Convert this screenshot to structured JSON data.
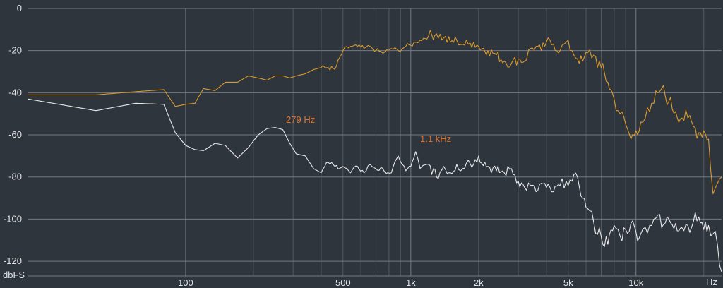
{
  "chart_data": {
    "type": "line",
    "title": "",
    "xlabel": "Hz",
    "ylabel": "dbFS",
    "x_scale": "log",
    "xlim": [
      20,
      24000
    ],
    "ylim": [
      -127,
      0
    ],
    "grid": true,
    "x_tick_labels": [
      {
        "value": 100,
        "label": "100"
      },
      {
        "value": 500,
        "label": "500"
      },
      {
        "value": 1000,
        "label": "1k"
      },
      {
        "value": 2000,
        "label": "2k"
      },
      {
        "value": 5000,
        "label": "5k"
      },
      {
        "value": 10000,
        "label": "10k"
      }
    ],
    "y_ticks": [
      0,
      -20,
      -40,
      -60,
      -80,
      -100,
      -120
    ],
    "series": [
      {
        "color": "#d99a2b",
        "x": [
          20,
          40,
          60,
          80,
          90,
          100,
          110,
          120,
          135,
          150,
          170,
          190,
          210,
          230,
          250,
          270,
          290,
          310,
          340,
          370,
          400,
          430,
          460,
          500,
          540,
          580,
          620,
          660,
          700,
          760,
          820,
          880,
          950,
          1000,
          1050,
          1100,
          1200,
          1300,
          1400,
          1500,
          1600,
          1700,
          1800,
          1900,
          2000,
          2200,
          2400,
          2600,
          2800,
          3000,
          3200,
          3400,
          3600,
          3800,
          4000,
          4300,
          4600,
          4900,
          5200,
          5500,
          5800,
          6100,
          6500,
          7000,
          7500,
          8000,
          8500,
          9000,
          9500,
          10000,
          10500,
          11000,
          11500,
          12000,
          12500,
          13000,
          14000,
          15000,
          16000,
          17000,
          18000,
          19000,
          20000,
          21000,
          22000,
          23000,
          24000
        ],
        "y": [
          -41,
          -41,
          -39.5,
          -38.5,
          -46.5,
          -45.5,
          -45,
          -38,
          -39,
          -35,
          -35,
          -32,
          -33,
          -34,
          -32,
          -32,
          -33,
          -32,
          -31,
          -29,
          -28,
          -28,
          -29,
          -20,
          -18,
          -18,
          -19,
          -18,
          -20,
          -21,
          -19,
          -20,
          -18,
          -17.5,
          -16,
          -15,
          -13,
          -12,
          -14,
          -16,
          -15,
          -17,
          -17,
          -16,
          -18,
          -20,
          -22,
          -25,
          -26,
          -24,
          -25,
          -19,
          -18,
          -20,
          -16,
          -17,
          -20,
          -16,
          -20,
          -24,
          -25,
          -21,
          -22,
          -28,
          -35,
          -43,
          -50,
          -55,
          -62,
          -58,
          -54,
          -52,
          -49,
          -45,
          -40,
          -38,
          -44,
          -49,
          -52,
          -52,
          -56,
          -59,
          -58,
          -62,
          -88,
          -83,
          -80
        ]
      },
      {
        "color": "#e8e8e8",
        "x": [
          20,
          40,
          60,
          80,
          90,
          100,
          110,
          120,
          135,
          150,
          170,
          190,
          210,
          230,
          250,
          270,
          290,
          310,
          340,
          370,
          400,
          430,
          460,
          500,
          540,
          580,
          620,
          660,
          700,
          760,
          820,
          880,
          950,
          1000,
          1050,
          1100,
          1200,
          1300,
          1400,
          1500,
          1600,
          1700,
          1800,
          1900,
          2000,
          2200,
          2400,
          2600,
          2800,
          3000,
          3200,
          3400,
          3600,
          3800,
          4000,
          4300,
          4600,
          4900,
          5200,
          5500,
          5800,
          6100,
          6500,
          7000,
          7500,
          8000,
          8500,
          9000,
          9500,
          10000,
          10500,
          11000,
          11500,
          12000,
          12500,
          13000,
          14000,
          15000,
          16000,
          17000,
          18000,
          19000,
          20000,
          21000,
          22000,
          23000,
          24000
        ],
        "y": [
          -43,
          -48.5,
          -45,
          -45.5,
          -59,
          -65,
          -67,
          -67.5,
          -64,
          -65,
          -71,
          -66,
          -60,
          -57,
          -56.5,
          -57.5,
          -64,
          -69,
          -70,
          -76,
          -78,
          -73,
          -75,
          -75,
          -78,
          -75,
          -78,
          -74,
          -76,
          -77,
          -78,
          -70,
          -77,
          -75,
          -68,
          -76,
          -74,
          -80,
          -75,
          -78,
          -74,
          -76,
          -72,
          -74,
          -70,
          -75,
          -77,
          -78,
          -76,
          -82,
          -85,
          -84,
          -87,
          -83,
          -85,
          -87,
          -84,
          -82,
          -82,
          -80,
          -90,
          -95,
          -102,
          -108,
          -112,
          -103,
          -108,
          -105,
          -102,
          -106,
          -107,
          -104,
          -103,
          -100,
          -98,
          -104,
          -100,
          -102,
          -104,
          -103,
          -101,
          -99,
          -105,
          -103,
          -107,
          -112,
          -125
        ]
      }
    ],
    "annotations": [
      {
        "text": "279 Hz",
        "x": 279,
        "y": -57,
        "color": "#e0722a"
      },
      {
        "text": "1.1  kHz",
        "x": 1100,
        "y": -66,
        "color": "#e0722a"
      }
    ]
  }
}
